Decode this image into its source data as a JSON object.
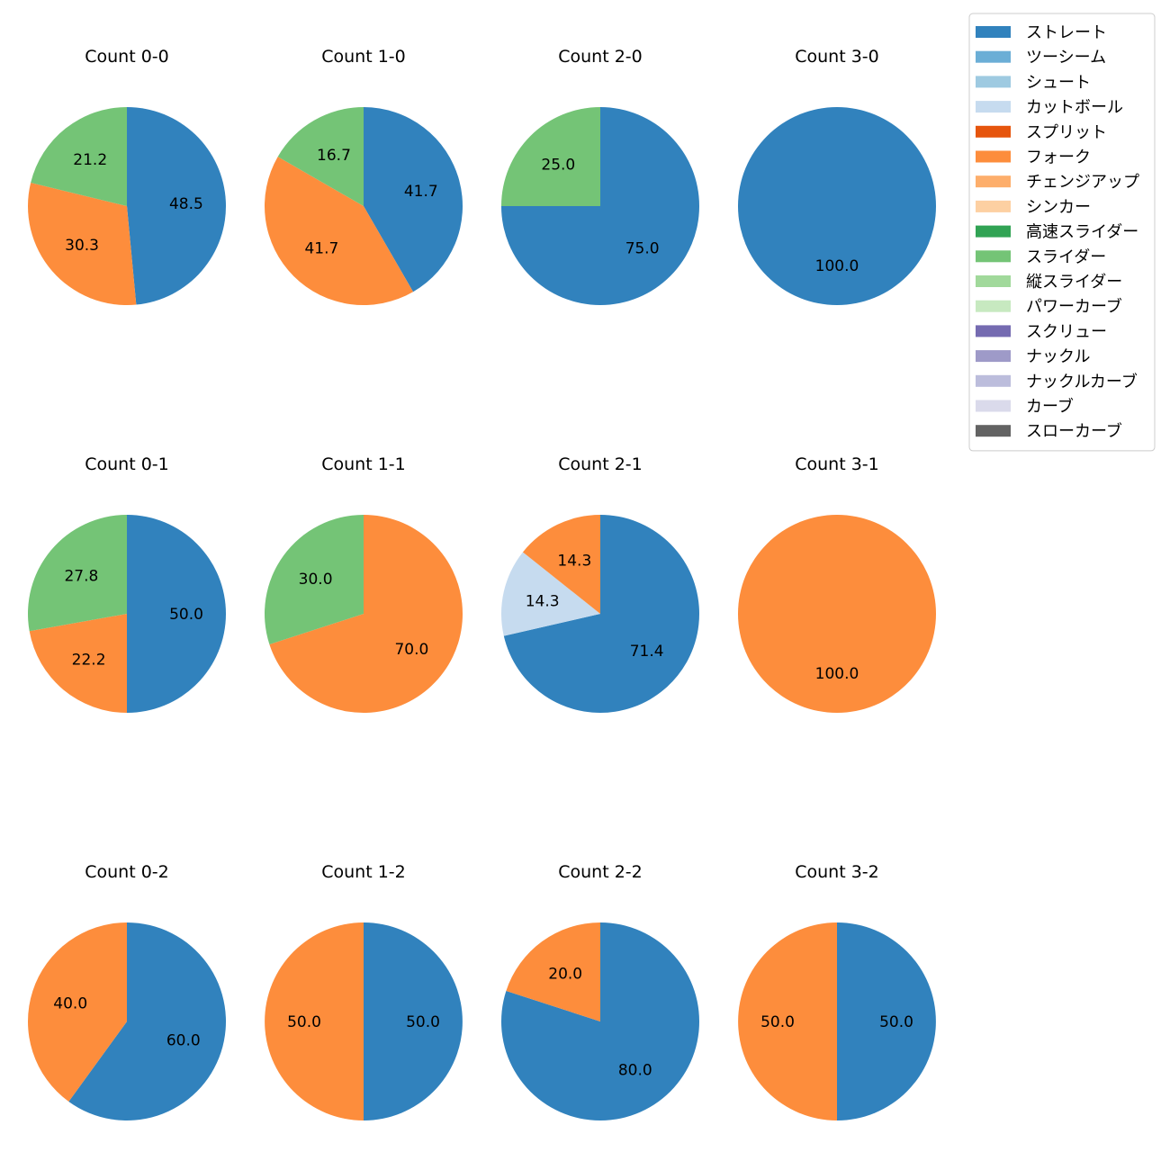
{
  "chart_data": {
    "type": "pie",
    "legend": {
      "placement": "top-right",
      "entries": [
        {
          "name": "ストレート",
          "color": "#3182bd"
        },
        {
          "name": "ツーシーム",
          "color": "#6baed6"
        },
        {
          "name": "シュート",
          "color": "#9ecae1"
        },
        {
          "name": "カットボール",
          "color": "#c6dbef"
        },
        {
          "name": "スプリット",
          "color": "#e6550d"
        },
        {
          "name": "フォーク",
          "color": "#fd8d3c"
        },
        {
          "name": "チェンジアップ",
          "color": "#fdae6b"
        },
        {
          "name": "シンカー",
          "color": "#fdd0a2"
        },
        {
          "name": "高速スライダー",
          "color": "#31a354"
        },
        {
          "name": "スライダー",
          "color": "#74c476"
        },
        {
          "name": "縦スライダー",
          "color": "#a1d99b"
        },
        {
          "name": "パワーカーブ",
          "color": "#c7e9c0"
        },
        {
          "name": "スクリュー",
          "color": "#756bb1"
        },
        {
          "name": "ナックル",
          "color": "#9e9ac8"
        },
        {
          "name": "ナックルカーブ",
          "color": "#bcbddc"
        },
        {
          "name": "カーブ",
          "color": "#dadaeb"
        },
        {
          "name": "スローカーブ",
          "color": "#636363"
        }
      ]
    },
    "charts": [
      {
        "title": "Count 0-0",
        "slices": [
          {
            "pitch": "ストレート",
            "value": 48.5,
            "label": "48.5"
          },
          {
            "pitch": "フォーク",
            "value": 30.3,
            "label": "30.3"
          },
          {
            "pitch": "スライダー",
            "value": 21.2,
            "label": "21.2"
          }
        ]
      },
      {
        "title": "Count 1-0",
        "slices": [
          {
            "pitch": "ストレート",
            "value": 41.7,
            "label": "41.7"
          },
          {
            "pitch": "フォーク",
            "value": 41.7,
            "label": "41.7"
          },
          {
            "pitch": "スライダー",
            "value": 16.7,
            "label": "16.7"
          }
        ]
      },
      {
        "title": "Count 2-0",
        "slices": [
          {
            "pitch": "ストレート",
            "value": 75.0,
            "label": "75.0"
          },
          {
            "pitch": "スライダー",
            "value": 25.0,
            "label": "25.0"
          }
        ]
      },
      {
        "title": "Count 3-0",
        "slices": [
          {
            "pitch": "ストレート",
            "value": 100.0,
            "label": "100.0"
          }
        ]
      },
      {
        "title": "Count 0-1",
        "slices": [
          {
            "pitch": "ストレート",
            "value": 50.0,
            "label": "50.0"
          },
          {
            "pitch": "フォーク",
            "value": 22.2,
            "label": "22.2"
          },
          {
            "pitch": "スライダー",
            "value": 27.8,
            "label": "27.8"
          }
        ]
      },
      {
        "title": "Count 1-1",
        "slices": [
          {
            "pitch": "フォーク",
            "value": 70.0,
            "label": "70.0"
          },
          {
            "pitch": "スライダー",
            "value": 30.0,
            "label": "30.0"
          }
        ]
      },
      {
        "title": "Count 2-1",
        "slices": [
          {
            "pitch": "ストレート",
            "value": 71.4,
            "label": "71.4"
          },
          {
            "pitch": "カットボール",
            "value": 14.3,
            "label": "14.3"
          },
          {
            "pitch": "フォーク",
            "value": 14.3,
            "label": "14.3"
          }
        ]
      },
      {
        "title": "Count 3-1",
        "slices": [
          {
            "pitch": "フォーク",
            "value": 100.0,
            "label": "100.0"
          }
        ]
      },
      {
        "title": "Count 0-2",
        "slices": [
          {
            "pitch": "ストレート",
            "value": 60.0,
            "label": "60.0"
          },
          {
            "pitch": "フォーク",
            "value": 40.0,
            "label": "40.0"
          }
        ]
      },
      {
        "title": "Count 1-2",
        "slices": [
          {
            "pitch": "ストレート",
            "value": 50.0,
            "label": "50.0"
          },
          {
            "pitch": "フォーク",
            "value": 50.0,
            "label": "50.0"
          }
        ]
      },
      {
        "title": "Count 2-2",
        "slices": [
          {
            "pitch": "ストレート",
            "value": 80.0,
            "label": "80.0"
          },
          {
            "pitch": "フォーク",
            "value": 20.0,
            "label": "20.0"
          }
        ]
      },
      {
        "title": "Count 3-2",
        "slices": [
          {
            "pitch": "ストレート",
            "value": 50.0,
            "label": "50.0"
          },
          {
            "pitch": "フォーク",
            "value": 50.0,
            "label": "50.0"
          }
        ]
      }
    ]
  }
}
